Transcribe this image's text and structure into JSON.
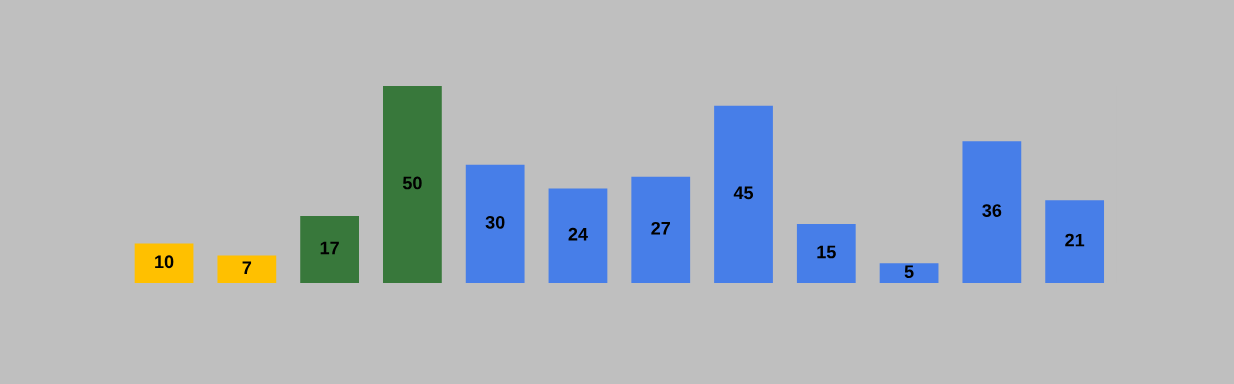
{
  "chart_data": {
    "type": "bar",
    "categories": [
      null,
      null,
      null,
      null,
      null,
      null,
      null,
      null,
      null,
      null,
      null,
      null
    ],
    "values": [
      10,
      7,
      17,
      50,
      30,
      24,
      27,
      45,
      15,
      5,
      36,
      21
    ],
    "colors": [
      "#ffc000",
      "#ffc000",
      "#38783b",
      "#38783b",
      "#477ee8",
      "#477ee8",
      "#477ee8",
      "#477ee8",
      "#477ee8",
      "#477ee8",
      "#477ee8",
      "#477ee8"
    ],
    "data_labels": true
  }
}
